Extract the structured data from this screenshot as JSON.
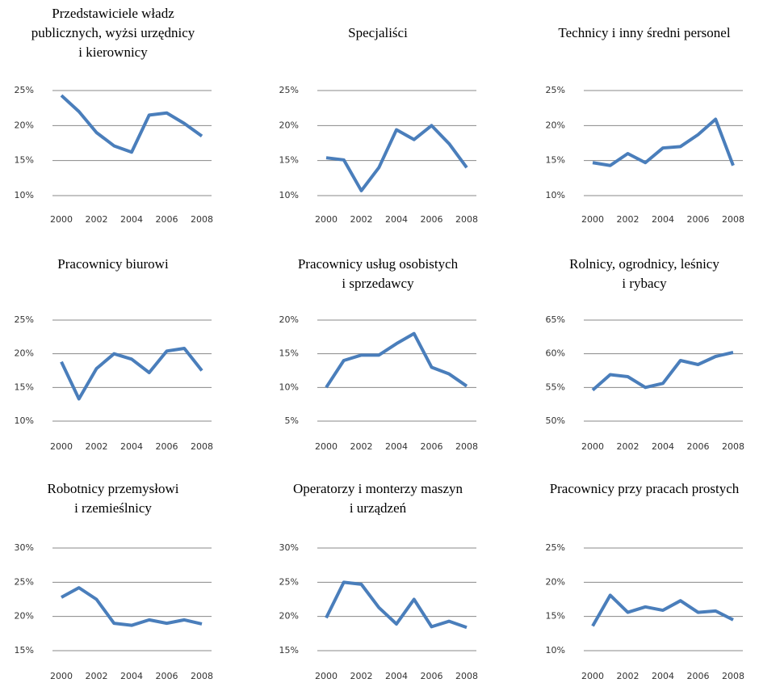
{
  "chart_data": [
    {
      "type": "line",
      "title": [
        "Przedstawiciele władz",
        "publicznych, wyżsi urzędnicy",
        "i kierownicy"
      ],
      "x": [
        2000,
        2001,
        2002,
        2003,
        2004,
        2005,
        2006,
        2007,
        2008
      ],
      "values": [
        24.3,
        22,
        19,
        17.1,
        16.2,
        21.5,
        21.8,
        20.3,
        18.5
      ],
      "color": "#4a7ebb",
      "xlim": [
        2000,
        2008
      ],
      "xticks": [
        2000,
        2002,
        2004,
        2006,
        2008
      ],
      "ylim": [
        10,
        25
      ],
      "yticks": [
        {
          "value": 10,
          "label": "10%"
        },
        {
          "value": 15,
          "label": "15%"
        },
        {
          "value": 20,
          "label": "20%"
        },
        {
          "value": 25,
          "label": "25%"
        }
      ],
      "grid": true
    },
    {
      "type": "line",
      "title": [
        "Specjaliści"
      ],
      "x": [
        2000,
        2001,
        2002,
        2003,
        2004,
        2005,
        2006,
        2007,
        2008
      ],
      "values": [
        15.4,
        15.1,
        10.7,
        14,
        19.4,
        18,
        20,
        17.4,
        14
      ],
      "color": "#4a7ebb",
      "xlim": [
        2000,
        2008
      ],
      "xticks": [
        2000,
        2002,
        2004,
        2006,
        2008
      ],
      "ylim": [
        10,
        25
      ],
      "yticks": [
        {
          "value": 10,
          "label": "10%"
        },
        {
          "value": 15,
          "label": "15%"
        },
        {
          "value": 20,
          "label": "20%"
        },
        {
          "value": 25,
          "label": "25%"
        }
      ],
      "grid": true
    },
    {
      "type": "line",
      "title": [
        "Technicy i inny średni personel"
      ],
      "x": [
        2000,
        2001,
        2002,
        2003,
        2004,
        2005,
        2006,
        2007,
        2008
      ],
      "values": [
        14.7,
        14.3,
        16,
        14.7,
        16.8,
        17,
        18.7,
        20.9,
        14.3
      ],
      "color": "#4a7ebb",
      "xlim": [
        2000,
        2008
      ],
      "xticks": [
        2000,
        2002,
        2004,
        2006,
        2008
      ],
      "ylim": [
        10,
        25
      ],
      "yticks": [
        {
          "value": 10,
          "label": "10%"
        },
        {
          "value": 15,
          "label": "15%"
        },
        {
          "value": 20,
          "label": "20%"
        },
        {
          "value": 25,
          "label": "25%"
        }
      ],
      "grid": true
    },
    {
      "type": "line",
      "title": [
        "Pracownicy biurowi"
      ],
      "x": [
        2000,
        2001,
        2002,
        2003,
        2004,
        2005,
        2006,
        2007,
        2008
      ],
      "values": [
        18.8,
        13.3,
        17.8,
        20,
        19.2,
        17.2,
        20.4,
        20.8,
        17.5
      ],
      "color": "#4a7ebb",
      "xlim": [
        2000,
        2008
      ],
      "xticks": [
        2000,
        2002,
        2004,
        2006,
        2008
      ],
      "ylim": [
        10,
        25
      ],
      "yticks": [
        {
          "value": 10,
          "label": "10%"
        },
        {
          "value": 15,
          "label": "15%"
        },
        {
          "value": 20,
          "label": "20%"
        },
        {
          "value": 25,
          "label": "25%"
        }
      ],
      "grid": true
    },
    {
      "type": "line",
      "title": [
        "Pracownicy usług osobistych",
        "i sprzedawcy"
      ],
      "x": [
        2000,
        2001,
        2002,
        2003,
        2004,
        2005,
        2006,
        2007,
        2008
      ],
      "values": [
        10,
        14,
        14.8,
        14.8,
        16.5,
        18,
        13,
        12,
        10.2
      ],
      "color": "#4a7ebb",
      "xlim": [
        2000,
        2008
      ],
      "xticks": [
        2000,
        2002,
        2004,
        2006,
        2008
      ],
      "ylim": [
        5,
        20
      ],
      "yticks": [
        {
          "value": 5,
          "label": "5%"
        },
        {
          "value": 10,
          "label": "10%"
        },
        {
          "value": 15,
          "label": "15%"
        },
        {
          "value": 20,
          "label": "20%"
        }
      ],
      "grid": true
    },
    {
      "type": "line",
      "title": [
        "Rolnicy, ogrodnicy, leśnicy",
        "i rybacy"
      ],
      "x": [
        2000,
        2001,
        2002,
        2003,
        2004,
        2005,
        2006,
        2007,
        2008
      ],
      "values": [
        54.6,
        56.9,
        56.6,
        55,
        55.6,
        59,
        58.4,
        59.6,
        60.2
      ],
      "color": "#4a7ebb",
      "xlim": [
        2000,
        2008
      ],
      "xticks": [
        2000,
        2002,
        2004,
        2006,
        2008
      ],
      "ylim": [
        50,
        65
      ],
      "yticks": [
        {
          "value": 50,
          "label": "50%"
        },
        {
          "value": 55,
          "label": "55%"
        },
        {
          "value": 60,
          "label": "60%"
        },
        {
          "value": 65,
          "label": "65%"
        }
      ],
      "grid": true
    },
    {
      "type": "line",
      "title": [
        "Robotnicy przemysłowi",
        "i rzemieślnicy"
      ],
      "x": [
        2000,
        2001,
        2002,
        2003,
        2004,
        2005,
        2006,
        2007,
        2008
      ],
      "values": [
        22.8,
        24.2,
        22.5,
        19,
        18.7,
        19.5,
        19,
        19.5,
        18.9
      ],
      "color": "#4a7ebb",
      "xlim": [
        2000,
        2008
      ],
      "xticks": [
        2000,
        2002,
        2004,
        2006,
        2008
      ],
      "ylim": [
        15,
        30
      ],
      "yticks": [
        {
          "value": 15,
          "label": "15%"
        },
        {
          "value": 20,
          "label": "20%"
        },
        {
          "value": 25,
          "label": "25%"
        },
        {
          "value": 30,
          "label": "30%"
        }
      ],
      "grid": true
    },
    {
      "type": "line",
      "title": [
        "Operatorzy i monterzy maszyn",
        "i urządzeń"
      ],
      "x": [
        2000,
        2001,
        2002,
        2003,
        2004,
        2005,
        2006,
        2007,
        2008
      ],
      "values": [
        19.8,
        25,
        24.7,
        21.3,
        18.9,
        22.5,
        18.5,
        19.3,
        18.4
      ],
      "color": "#4a7ebb",
      "xlim": [
        2000,
        2008
      ],
      "xticks": [
        2000,
        2002,
        2004,
        2006,
        2008
      ],
      "ylim": [
        15,
        30
      ],
      "yticks": [
        {
          "value": 15,
          "label": "15%"
        },
        {
          "value": 20,
          "label": "20%"
        },
        {
          "value": 25,
          "label": "25%"
        },
        {
          "value": 30,
          "label": "30%"
        }
      ],
      "grid": true
    },
    {
      "type": "line",
      "title": [
        "Pracownicy przy pracach prostych"
      ],
      "x": [
        2000,
        2001,
        2002,
        2003,
        2004,
        2005,
        2006,
        2007,
        2008
      ],
      "values": [
        13.6,
        18.1,
        15.6,
        16.4,
        15.9,
        17.3,
        15.6,
        15.8,
        14.5
      ],
      "color": "#4a7ebb",
      "xlim": [
        2000,
        2008
      ],
      "xticks": [
        2000,
        2002,
        2004,
        2006,
        2008
      ],
      "ylim": [
        10,
        25
      ],
      "yticks": [
        {
          "value": 10,
          "label": "10%"
        },
        {
          "value": 15,
          "label": "15%"
        },
        {
          "value": 20,
          "label": "20%"
        },
        {
          "value": 25,
          "label": "25%"
        }
      ],
      "grid": true
    }
  ]
}
